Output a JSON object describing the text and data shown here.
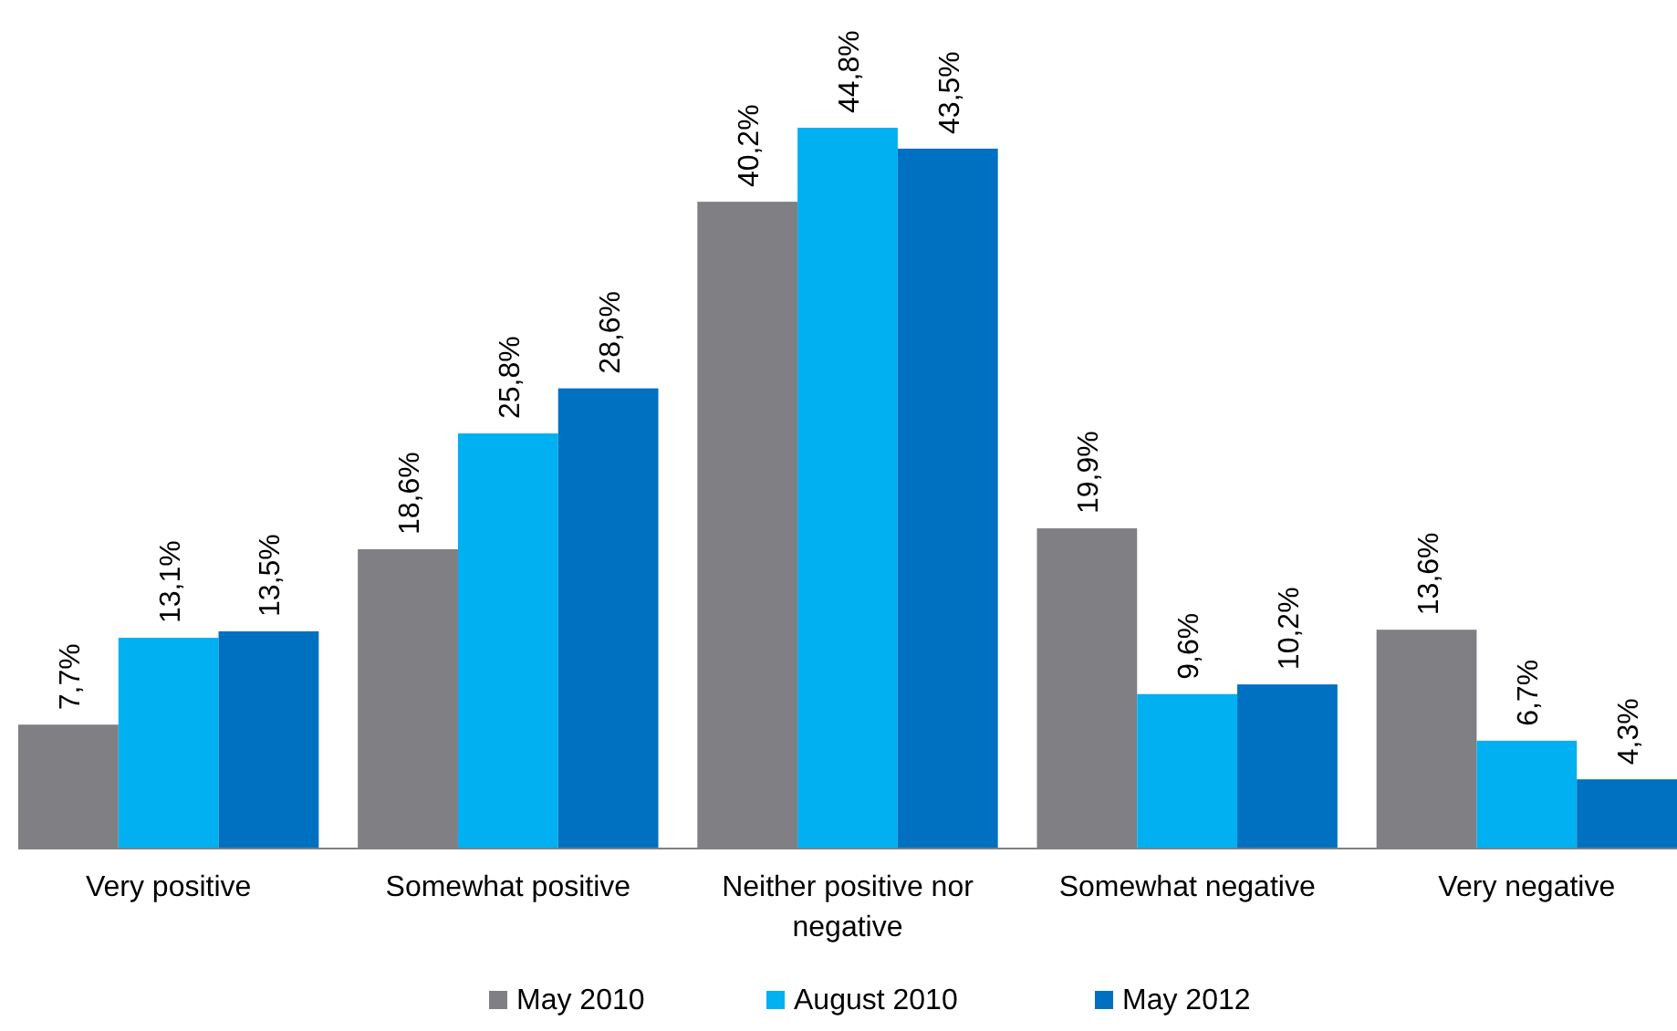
{
  "chart_data": {
    "type": "bar",
    "categories": [
      "Very positive",
      "Somewhat positive",
      "Neither positive nor negative",
      "Somewhat negative",
      "Very negative"
    ],
    "series": [
      {
        "name": "May 2010",
        "color": "#7f7f84",
        "values": [
          7.7,
          18.6,
          40.2,
          19.9,
          13.6
        ],
        "value_labels": [
          "7,7%",
          "18,6%",
          "40,2%",
          "19,9%",
          "13,6%"
        ]
      },
      {
        "name": "August 2010",
        "color": "#00b0f0",
        "values": [
          13.1,
          25.8,
          44.8,
          9.6,
          6.7
        ],
        "value_labels": [
          "13,1%",
          "25,8%",
          "44,8%",
          "9,6%",
          "6,7%"
        ]
      },
      {
        "name": "May 2012",
        "color": "#0070c0",
        "values": [
          13.5,
          28.6,
          43.5,
          10.2,
          4.3
        ],
        "value_labels": [
          "13,5%",
          "28,6%",
          "43,5%",
          "10,2%",
          "4,3%"
        ]
      }
    ],
    "legend": "bottom"
  }
}
